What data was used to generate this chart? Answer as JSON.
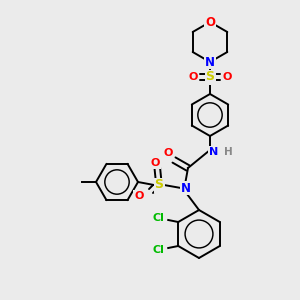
{
  "bg_color": "#ebebeb",
  "atom_colors": {
    "C": "#000000",
    "N": "#0000ff",
    "O": "#ff0000",
    "S": "#cccc00",
    "Cl": "#00bb00",
    "H": "#888888"
  },
  "bond_color": "#000000",
  "bond_width": 1.4,
  "fig_w": 3.0,
  "fig_h": 3.0,
  "dpi": 100,
  "xlim": [
    0,
    300
  ],
  "ylim": [
    0,
    300
  ]
}
